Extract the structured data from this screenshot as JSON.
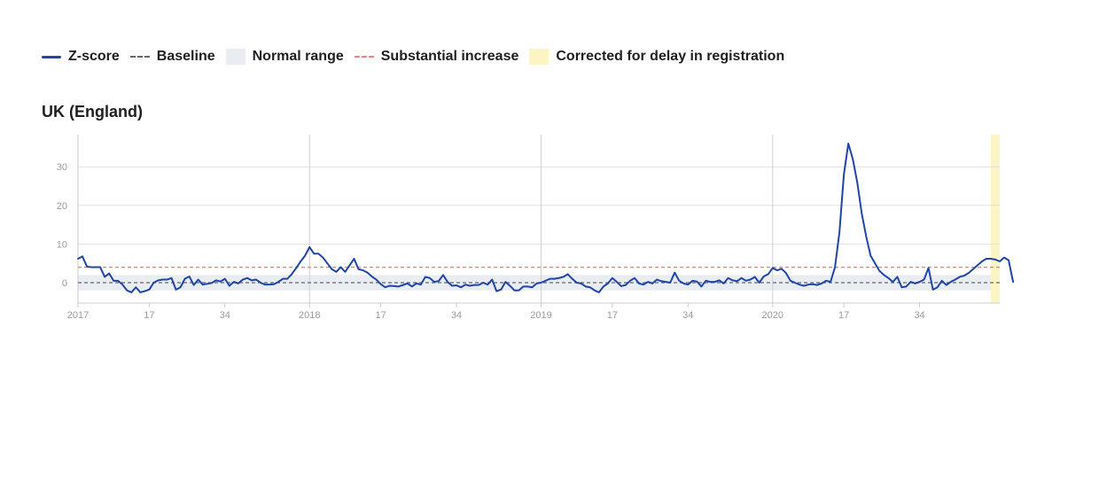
{
  "legend": {
    "items": [
      {
        "label": "Z-score",
        "kind": "line",
        "color": "#1f45a6"
      },
      {
        "label": "Baseline",
        "kind": "dash",
        "color": "#666666"
      },
      {
        "label": "Normal range",
        "kind": "box",
        "color": "#e9edf2"
      },
      {
        "label": "Substantial increase",
        "kind": "dash",
        "color": "#f08080"
      },
      {
        "label": "Corrected for delay in registration",
        "kind": "box",
        "color": "#fdf4c4"
      }
    ]
  },
  "chart_data": {
    "type": "line",
    "title": "UK (England)",
    "xlabel": "",
    "ylabel": "",
    "ylim": [
      -5,
      38
    ],
    "yticks": [
      0,
      10,
      20,
      30
    ],
    "x_ticks": [
      {
        "week_index": 0,
        "label": "2017"
      },
      {
        "week_index": 16,
        "label": "17"
      },
      {
        "week_index": 33,
        "label": "34"
      },
      {
        "week_index": 52,
        "label": "2018"
      },
      {
        "week_index": 68,
        "label": "17"
      },
      {
        "week_index": 85,
        "label": "34"
      },
      {
        "week_index": 104,
        "label": "2019"
      },
      {
        "week_index": 120,
        "label": "17"
      },
      {
        "week_index": 137,
        "label": "34"
      },
      {
        "week_index": 156,
        "label": "2020"
      },
      {
        "week_index": 172,
        "label": "17"
      },
      {
        "week_index": 189,
        "label": "34"
      }
    ],
    "year_gridlines": [
      52,
      104,
      156
    ],
    "x_range": [
      0,
      207
    ],
    "baseline": 0,
    "normal_range": [
      -2,
      2
    ],
    "substantial_increase": 4,
    "corrected_delay_range": [
      205,
      208
    ],
    "grid": true,
    "legend_position": "top-left",
    "colors": {
      "zscore": "#1f45a6",
      "baseline": "#666666",
      "normal_range": "#e9edf2",
      "substantial": "#f08080",
      "corrected": "#fdf4c4",
      "grid": "#e0e0e0",
      "year_grid": "#cfcfcf",
      "axis": "#cccccc"
    },
    "series": [
      {
        "values": [
          6.2,
          6.8,
          4.2,
          4.0,
          4.0,
          4.0,
          1.5,
          2.4,
          0.5,
          0.5,
          -0.5,
          -2.0,
          -2.5,
          -1.2,
          -2.5,
          -2.2,
          -1.8,
          0.0,
          0.6,
          0.8,
          0.8,
          1.2,
          -1.8,
          -1.2,
          1.0,
          1.6,
          -0.6,
          0.8,
          -0.5,
          -0.3,
          -0.1,
          0.6,
          0.3,
          1.0,
          -0.8,
          0.2,
          -0.2,
          0.8,
          1.2,
          0.6,
          0.8,
          0.0,
          -0.5,
          -0.5,
          -0.4,
          0.2,
          1.0,
          1.0,
          2.2,
          3.8,
          5.5,
          7.0,
          9.2,
          7.5,
          7.5,
          6.5,
          5.0,
          3.5,
          2.8,
          4.0,
          2.8,
          4.5,
          6.2,
          3.5,
          3.2,
          2.6,
          1.6,
          0.8,
          -0.4,
          -1.2,
          -0.8,
          -0.9,
          -1.0,
          -0.6,
          -0.2,
          -1.0,
          -0.2,
          -0.5,
          1.5,
          1.2,
          0.2,
          0.4,
          2.0,
          0.2,
          -0.8,
          -0.7,
          -1.2,
          -0.5,
          -0.8,
          -0.6,
          -0.6,
          0.0,
          -0.5,
          0.8,
          -2.2,
          -1.8,
          0.2,
          -0.8,
          -2.0,
          -2.0,
          -1.0,
          -1.0,
          -1.2,
          -0.2,
          0.0,
          0.5,
          1.0,
          1.0,
          1.2,
          1.5,
          2.2,
          1.0,
          0.0,
          -0.2,
          -1.0,
          -1.2,
          -2.0,
          -2.5,
          -1.0,
          -0.2,
          1.2,
          0.2,
          -0.9,
          -0.6,
          0.5,
          1.2,
          -0.2,
          -0.5,
          0.2,
          -0.2,
          0.8,
          0.4,
          0.2,
          0.0,
          2.6,
          0.5,
          -0.2,
          -0.5,
          0.5,
          0.3,
          -1.0,
          0.5,
          0.2,
          0.2,
          0.6,
          -0.2,
          1.2,
          0.6,
          0.4,
          1.2,
          0.5,
          0.8,
          1.5,
          0.0,
          1.6,
          2.2,
          3.8,
          3.2,
          3.6,
          2.5,
          0.5,
          0.0,
          -0.5,
          -0.8,
          -0.5,
          -0.4,
          -0.6,
          -0.2,
          0.5,
          0.2,
          4.0,
          13.0,
          28.0,
          36.0,
          32.0,
          26.0,
          18.0,
          12.0,
          7.0,
          5.0,
          3.0,
          2.0,
          1.2,
          0.2,
          1.5,
          -1.2,
          -1.0,
          0.2,
          -0.2,
          0.2,
          0.8,
          3.8,
          -1.8,
          -1.2,
          0.5,
          -0.6,
          0.2,
          0.8,
          1.5,
          1.8,
          2.5,
          3.5,
          4.5,
          5.5,
          6.2,
          6.2,
          6.0,
          5.5,
          6.5,
          5.8,
          0.2
        ]
      }
    ]
  }
}
